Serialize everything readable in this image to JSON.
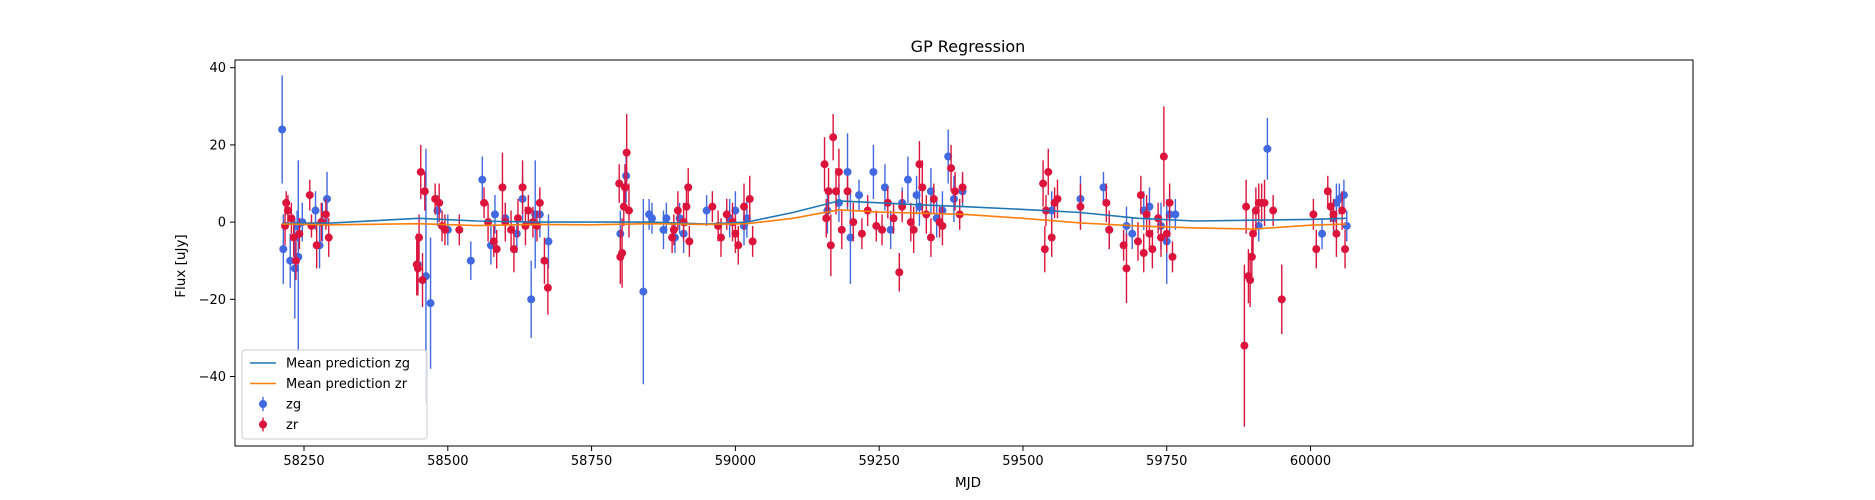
{
  "chart_data": {
    "type": "scatter",
    "title": "GP Regression",
    "xlabel": "MJD",
    "ylabel": "Flux [uJy]",
    "xlim": [
      58130,
      60665
    ],
    "ylim": [
      -58,
      42
    ],
    "x_ticks": [
      58250,
      58500,
      58750,
      59000,
      59250,
      59500,
      59750,
      60000
    ],
    "x_tick_labels": [
      "58250",
      "58500",
      "58750",
      "59000",
      "59250",
      "59500",
      "59750",
      "60000"
    ],
    "y_ticks": [
      -40,
      -20,
      0,
      20,
      40
    ],
    "y_tick_labels": [
      "−40",
      "−20",
      "0",
      "20",
      "40"
    ],
    "grid": false,
    "legend_position": "lower-left",
    "colors": {
      "zg_line": "#1f77b4",
      "zr_line": "#ff7f0e",
      "zg_points": "#4169e1",
      "zr_points": "#dc143c"
    },
    "series": [
      {
        "name": "Mean prediction zg",
        "kind": "line",
        "color": "#1f77b4",
        "x": [
          58212,
          58300,
          58450,
          58550,
          58650,
          58750,
          58850,
          58950,
          59020,
          59100,
          59180,
          59250,
          59320,
          59400,
          59500,
          59600,
          59700,
          59800,
          59900,
          60000,
          60062
        ],
        "y": [
          -0.3,
          -0.2,
          1.0,
          0.3,
          0.0,
          0.0,
          0.0,
          -0.5,
          0.0,
          2.5,
          5.5,
          5.0,
          4.5,
          4.0,
          3.3,
          2.5,
          1.0,
          0.3,
          0.5,
          0.7,
          1.0
        ]
      },
      {
        "name": "Mean prediction zr",
        "kind": "line",
        "color": "#ff7f0e",
        "x": [
          58212,
          58300,
          58450,
          58550,
          58650,
          58750,
          58850,
          58950,
          59020,
          59100,
          59180,
          59250,
          59320,
          59400,
          59500,
          59600,
          59700,
          59800,
          59900,
          60000,
          60062
        ],
        "y": [
          -0.5,
          -0.7,
          -0.4,
          -0.9,
          -0.6,
          -0.7,
          -0.4,
          -0.6,
          -0.4,
          1.0,
          3.2,
          2.6,
          2.3,
          2.0,
          1.0,
          -0.2,
          -1.0,
          -1.5,
          -1.8,
          -0.8,
          -0.5
        ]
      },
      {
        "name": "zg",
        "kind": "errorbar",
        "color": "#4169e1",
        "points": [
          [
            58212,
            24,
            14
          ],
          [
            58214,
            -7,
            9
          ],
          [
            58226,
            -10,
            7
          ],
          [
            58234,
            -12,
            13
          ],
          [
            58238,
            -1,
            4
          ],
          [
            58240,
            -9,
            25
          ],
          [
            58247,
            0,
            5
          ],
          [
            58270,
            3,
            5
          ],
          [
            58277,
            -6,
            6
          ],
          [
            58282,
            0,
            5
          ],
          [
            58290,
            6,
            7
          ],
          [
            58448,
            -11,
            7
          ],
          [
            58462,
            -14,
            33
          ],
          [
            58470,
            -21,
            17
          ],
          [
            58482,
            3,
            4
          ],
          [
            58500,
            -2,
            4
          ],
          [
            58540,
            -10,
            5
          ],
          [
            58560,
            11,
            6
          ],
          [
            58575,
            -6,
            5
          ],
          [
            58582,
            2,
            5
          ],
          [
            58600,
            1,
            4
          ],
          [
            58620,
            -3,
            5
          ],
          [
            58630,
            6,
            6
          ],
          [
            58645,
            -20,
            10
          ],
          [
            58652,
            2,
            14
          ],
          [
            58660,
            2,
            6
          ],
          [
            58675,
            -5,
            7
          ],
          [
            58800,
            -3,
            6
          ],
          [
            58810,
            12,
            7
          ],
          [
            58840,
            -18,
            24
          ],
          [
            58850,
            2,
            4
          ],
          [
            58855,
            1,
            4
          ],
          [
            58875,
            -2,
            5
          ],
          [
            58880,
            1,
            4
          ],
          [
            58895,
            -4,
            4
          ],
          [
            58903,
            1,
            4
          ],
          [
            58910,
            -3,
            5
          ],
          [
            58950,
            3,
            4
          ],
          [
            58990,
            1,
            5
          ],
          [
            59000,
            3,
            5
          ],
          [
            59015,
            -1,
            5
          ],
          [
            59020,
            1,
            5
          ],
          [
            59160,
            3,
            6
          ],
          [
            59180,
            5,
            5
          ],
          [
            59195,
            13,
            10
          ],
          [
            59200,
            -4,
            12
          ],
          [
            59215,
            7,
            4
          ],
          [
            59240,
            13,
            7
          ],
          [
            59260,
            9,
            6
          ],
          [
            59270,
            -2,
            5
          ],
          [
            59290,
            5,
            4
          ],
          [
            59300,
            11,
            6
          ],
          [
            59315,
            7,
            5
          ],
          [
            59320,
            4,
            5
          ],
          [
            59340,
            8,
            6
          ],
          [
            59350,
            1,
            5
          ],
          [
            59360,
            3,
            5
          ],
          [
            59370,
            17,
            7
          ],
          [
            59380,
            6,
            6
          ],
          [
            59395,
            8,
            4
          ],
          [
            59550,
            3,
            5
          ],
          [
            59600,
            6,
            6
          ],
          [
            59640,
            9,
            4
          ],
          [
            59650,
            -2,
            5
          ],
          [
            59680,
            -1,
            5
          ],
          [
            59690,
            -3,
            4
          ],
          [
            59710,
            3,
            5
          ],
          [
            59720,
            4,
            5
          ],
          [
            59740,
            -1,
            6
          ],
          [
            59750,
            -5,
            11
          ],
          [
            59755,
            2,
            6
          ],
          [
            59765,
            2,
            4
          ],
          [
            59910,
            -1,
            4
          ],
          [
            59925,
            19,
            8
          ],
          [
            60020,
            -3,
            4
          ],
          [
            60040,
            1,
            4
          ],
          [
            60045,
            5,
            5
          ],
          [
            60050,
            6,
            4
          ],
          [
            60058,
            7,
            4
          ],
          [
            60063,
            -1,
            4
          ]
        ]
      },
      {
        "name": "zr",
        "kind": "errorbar",
        "color": "#dc143c",
        "points": [
          [
            58217,
            -1,
            5
          ],
          [
            58219,
            5,
            3
          ],
          [
            58222,
            3,
            4
          ],
          [
            58228,
            1,
            4
          ],
          [
            58232,
            -4,
            5
          ],
          [
            58236,
            -10,
            5
          ],
          [
            58242,
            -3,
            4
          ],
          [
            58260,
            7,
            4
          ],
          [
            58263,
            -1,
            3
          ],
          [
            58272,
            -6,
            6
          ],
          [
            58280,
            0,
            5
          ],
          [
            58288,
            2,
            4
          ],
          [
            58293,
            -4,
            5
          ],
          [
            58446,
            -11,
            8
          ],
          [
            58448,
            -12,
            7
          ],
          [
            58450,
            -4,
            6
          ],
          [
            58453,
            13,
            7
          ],
          [
            58456,
            -15,
            7
          ],
          [
            58460,
            8,
            5
          ],
          [
            58478,
            6,
            4
          ],
          [
            58485,
            5,
            5
          ],
          [
            58490,
            -1,
            4
          ],
          [
            58495,
            -2,
            4
          ],
          [
            58520,
            -2,
            4
          ],
          [
            58563,
            5,
            4
          ],
          [
            58570,
            0,
            5
          ],
          [
            58580,
            -5,
            4
          ],
          [
            58585,
            -7,
            5
          ],
          [
            58595,
            9,
            9
          ],
          [
            58600,
            0,
            5
          ],
          [
            58610,
            -2,
            5
          ],
          [
            58615,
            -7,
            6
          ],
          [
            58622,
            1,
            5
          ],
          [
            58630,
            9,
            7
          ],
          [
            58635,
            -1,
            5
          ],
          [
            58640,
            3,
            4
          ],
          [
            58648,
            0,
            4
          ],
          [
            58655,
            -1,
            4
          ],
          [
            58660,
            5,
            4
          ],
          [
            58668,
            -10,
            6
          ],
          [
            58674,
            -17,
            7
          ],
          [
            58798,
            10,
            5
          ],
          [
            58800,
            -9,
            7
          ],
          [
            58803,
            -8,
            9
          ],
          [
            58806,
            4,
            5
          ],
          [
            58808,
            9,
            6
          ],
          [
            58811,
            18,
            10
          ],
          [
            58815,
            3,
            7
          ],
          [
            58890,
            -4,
            4
          ],
          [
            58893,
            -2,
            4
          ],
          [
            58900,
            3,
            5
          ],
          [
            58910,
            0,
            5
          ],
          [
            58915,
            4,
            5
          ],
          [
            58918,
            9,
            5
          ],
          [
            58920,
            -5,
            4
          ],
          [
            58960,
            4,
            4
          ],
          [
            58970,
            -1,
            4
          ],
          [
            58975,
            -4,
            5
          ],
          [
            58985,
            2,
            4
          ],
          [
            58995,
            0,
            5
          ],
          [
            59000,
            -3,
            5
          ],
          [
            59005,
            -6,
            5
          ],
          [
            59015,
            4,
            6
          ],
          [
            59025,
            6,
            6
          ],
          [
            59030,
            -5,
            4
          ],
          [
            59155,
            15,
            7
          ],
          [
            59158,
            1,
            5
          ],
          [
            59162,
            8,
            6
          ],
          [
            59166,
            -6,
            8
          ],
          [
            59170,
            22,
            6
          ],
          [
            59175,
            8,
            6
          ],
          [
            59180,
            13,
            6
          ],
          [
            59185,
            -2,
            5
          ],
          [
            59195,
            8,
            4
          ],
          [
            59205,
            0,
            5
          ],
          [
            59220,
            -3,
            4
          ],
          [
            59230,
            3,
            4
          ],
          [
            59245,
            -1,
            4
          ],
          [
            59255,
            -2,
            4
          ],
          [
            59265,
            5,
            4
          ],
          [
            59275,
            1,
            4
          ],
          [
            59285,
            -13,
            5
          ],
          [
            59290,
            4,
            4
          ],
          [
            59305,
            0,
            5
          ],
          [
            59310,
            -2,
            6
          ],
          [
            59320,
            15,
            6
          ],
          [
            59325,
            9,
            7
          ],
          [
            59332,
            2,
            5
          ],
          [
            59340,
            -4,
            5
          ],
          [
            59345,
            6,
            4
          ],
          [
            59355,
            0,
            4
          ],
          [
            59360,
            -1,
            5
          ],
          [
            59375,
            14,
            6
          ],
          [
            59382,
            8,
            5
          ],
          [
            59390,
            2,
            4
          ],
          [
            59395,
            9,
            4
          ],
          [
            59535,
            10,
            6
          ],
          [
            59538,
            -7,
            6
          ],
          [
            59540,
            3,
            4
          ],
          [
            59544,
            13,
            6
          ],
          [
            59550,
            -4,
            5
          ],
          [
            59555,
            5,
            4
          ],
          [
            59560,
            6,
            5
          ],
          [
            59600,
            4,
            6
          ],
          [
            59645,
            5,
            5
          ],
          [
            59650,
            -2,
            5
          ],
          [
            59675,
            -6,
            4
          ],
          [
            59680,
            -12,
            9
          ],
          [
            59700,
            -5,
            5
          ],
          [
            59705,
            7,
            5
          ],
          [
            59710,
            -8,
            5
          ],
          [
            59715,
            2,
            5
          ],
          [
            59720,
            -3,
            4
          ],
          [
            59725,
            -7,
            5
          ],
          [
            59735,
            1,
            4
          ],
          [
            59740,
            -4,
            5
          ],
          [
            59745,
            17,
            13
          ],
          [
            59750,
            -3,
            5
          ],
          [
            59755,
            5,
            5
          ],
          [
            59760,
            -9,
            4
          ],
          [
            59885,
            -32,
            21
          ],
          [
            59888,
            4,
            7
          ],
          [
            59892,
            -14,
            7
          ],
          [
            59895,
            -15,
            7
          ],
          [
            59898,
            -9,
            5
          ],
          [
            59900,
            -3,
            6
          ],
          [
            59905,
            3,
            6
          ],
          [
            59910,
            5,
            5
          ],
          [
            59915,
            5,
            5
          ],
          [
            59920,
            5,
            6
          ],
          [
            59935,
            3,
            4
          ],
          [
            59950,
            -20,
            9
          ],
          [
            60005,
            2,
            4
          ],
          [
            60010,
            -7,
            5
          ],
          [
            60030,
            8,
            4
          ],
          [
            60035,
            4,
            4
          ],
          [
            60040,
            2,
            4
          ],
          [
            60045,
            -3,
            6
          ],
          [
            60055,
            3,
            5
          ],
          [
            60060,
            -7,
            5
          ]
        ]
      }
    ]
  }
}
